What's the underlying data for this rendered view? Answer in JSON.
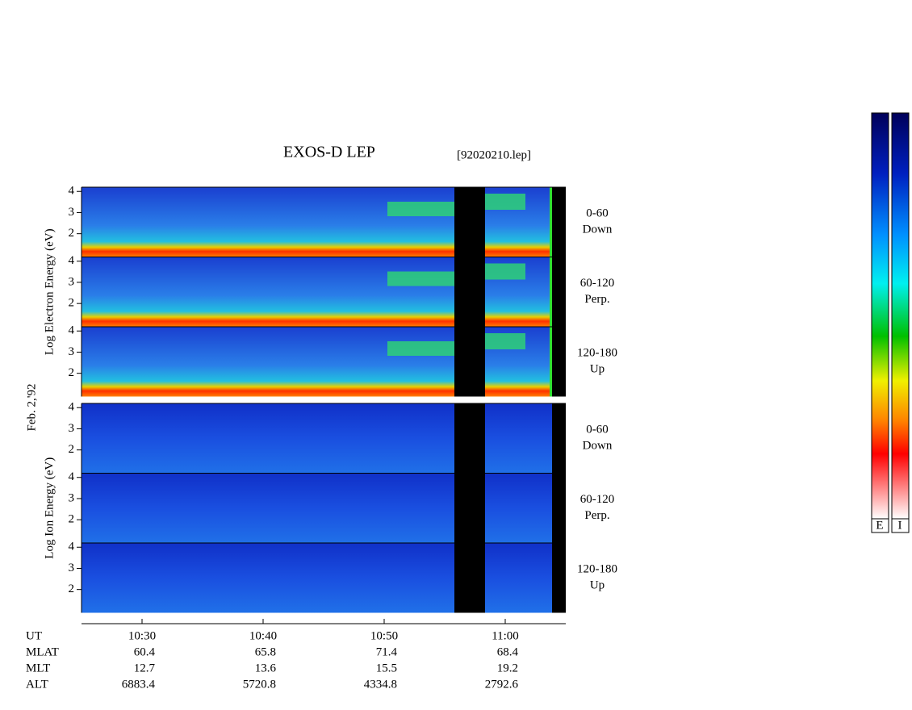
{
  "chart_data": {
    "type": "spectrogram",
    "title": "EXOS-D LEP",
    "file_label": "[92020210.lep]",
    "date_label": "Feb. 2,'92",
    "panel_groups": [
      {
        "ylabel": "Log Electron Energy (eV)",
        "panels": [
          {
            "angle": "0-60",
            "direction": "Down"
          },
          {
            "angle": "60-120",
            "direction": "Perp."
          },
          {
            "angle": "120-180",
            "direction": "Up"
          }
        ]
      },
      {
        "ylabel": "Log Ion Energy (eV)",
        "panels": [
          {
            "angle": "0-60",
            "direction": "Down"
          },
          {
            "angle": "60-120",
            "direction": "Perp."
          },
          {
            "angle": "120-180",
            "direction": "Up"
          }
        ]
      }
    ],
    "ylim": [
      0.9,
      4.2
    ],
    "yticks": [
      2,
      3,
      4
    ],
    "xlim": [
      625,
      665
    ],
    "xticks": [
      {
        "value": 630,
        "label": "10:30"
      },
      {
        "value": 640,
        "label": "10:40"
      },
      {
        "value": 650,
        "label": "10:50"
      },
      {
        "value": 660,
        "label": "11:00"
      }
    ],
    "xlabel": "UT",
    "orbit_rows": [
      {
        "name": "MLAT",
        "values": [
          60.4,
          65.8,
          71.4,
          68.4
        ]
      },
      {
        "name": "MLT",
        "values": [
          12.7,
          13.6,
          15.5,
          19.2
        ]
      },
      {
        "name": "ALT",
        "values": [
          6883.4,
          5720.8,
          4334.8,
          2792.6
        ]
      }
    ],
    "colorbar_labels": [
      "E",
      "I"
    ]
  }
}
